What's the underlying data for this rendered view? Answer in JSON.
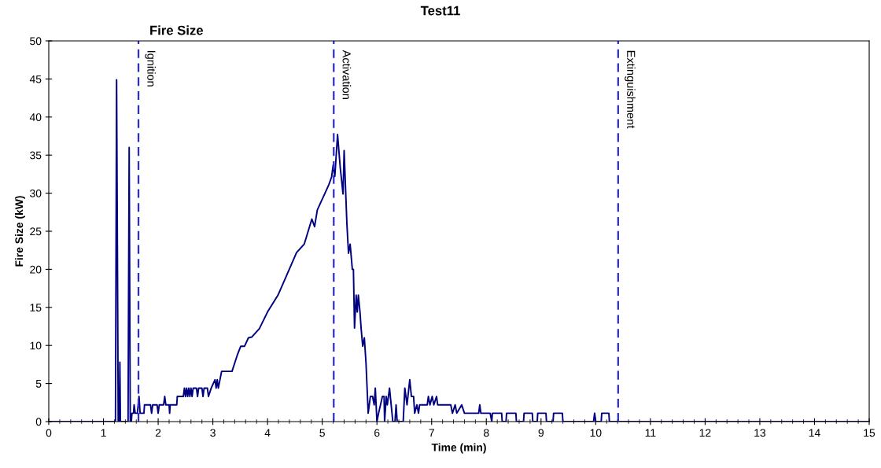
{
  "chart_data": {
    "type": "line",
    "title": "Test11",
    "subtitle": "Fire Size",
    "xlabel": "Time (min)",
    "ylabel": "Fire Size (kW)",
    "xlim": [
      0,
      15
    ],
    "xticks": [
      0,
      1,
      2,
      3,
      4,
      5,
      6,
      7,
      8,
      9,
      10,
      11,
      12,
      13,
      14,
      15
    ],
    "ylim": [
      0,
      50
    ],
    "yticks": [
      0,
      5,
      10,
      15,
      20,
      25,
      30,
      35,
      40,
      45,
      50
    ],
    "grid": false,
    "legend": false,
    "marker": "none",
    "line_style": "solid",
    "series": [
      {
        "color": "#000080",
        "x": [
          0,
          1.22,
          1.24,
          1.27,
          1.29,
          1.3,
          1.31,
          1.45,
          1.47,
          1.49,
          1.51,
          1.52,
          1.55,
          1.56,
          1.58,
          1.62,
          1.65,
          1.67,
          1.74,
          1.75,
          1.86,
          1.88,
          1.9,
          1.98,
          2.0,
          2.02,
          2.1,
          2.12,
          2.14,
          2.2,
          2.21,
          2.22,
          2.34,
          2.35,
          2.46,
          2.48,
          2.5,
          2.52,
          2.54,
          2.56,
          2.58,
          2.6,
          2.62,
          2.64,
          2.7,
          2.72,
          2.74,
          2.8,
          2.82,
          2.84,
          2.9,
          2.92,
          2.97,
          3.04,
          3.06,
          3.08,
          3.1,
          3.16,
          3.35,
          3.4,
          3.45,
          3.51,
          3.58,
          3.65,
          3.71,
          3.85,
          4.0,
          4.19,
          4.33,
          4.53,
          4.67,
          4.81,
          4.86,
          4.91,
          5.05,
          5.12,
          5.17,
          5.2,
          5.23,
          5.28,
          5.33,
          5.38,
          5.4,
          5.45,
          5.48,
          5.51,
          5.55,
          5.57,
          5.59,
          5.62,
          5.64,
          5.66,
          5.69,
          5.71,
          5.74,
          5.77,
          5.8,
          5.84,
          5.88,
          5.92,
          5.95,
          5.97,
          6.0,
          6.03,
          6.1,
          6.13,
          6.14,
          6.17,
          6.19,
          6.23,
          6.26,
          6.29,
          6.33,
          6.35,
          6.37,
          6.48,
          6.51,
          6.55,
          6.6,
          6.63,
          6.67,
          6.69,
          6.73,
          6.76,
          6.78,
          6.92,
          6.94,
          6.97,
          7.01,
          7.04,
          7.09,
          7.11,
          7.35,
          7.38,
          7.43,
          7.46,
          7.55,
          7.6,
          7.86,
          7.88,
          7.9,
          8.07,
          8.1,
          8.11,
          8.28,
          8.29,
          8.36,
          8.37,
          8.54,
          8.55,
          8.68,
          8.69,
          8.84,
          8.85,
          8.93,
          8.94,
          9.09,
          9.1,
          9.22,
          9.23,
          9.39,
          9.4,
          9.96,
          9.98,
          10.0,
          10.1,
          10.11,
          10.24,
          10.25,
          15
        ],
        "values": [
          0,
          0,
          44.9,
          0,
          0,
          7.8,
          0,
          0,
          36,
          0,
          0,
          1.1,
          1.1,
          2.2,
          1.1,
          1.1,
          3.3,
          1.1,
          1.1,
          2.2,
          2.2,
          1.1,
          2.2,
          2.2,
          1.1,
          2.2,
          2.2,
          3.3,
          2.2,
          2.2,
          1.1,
          2.2,
          2.2,
          3.3,
          3.3,
          4.4,
          3.3,
          4.4,
          3.3,
          4.4,
          3.3,
          4.4,
          3.3,
          4.4,
          4.4,
          3.3,
          4.4,
          4.4,
          3.3,
          4.4,
          4.4,
          3.3,
          4.4,
          5.5,
          4.4,
          5.5,
          4.4,
          6.6,
          6.6,
          7.7,
          8.8,
          9.9,
          9.9,
          11,
          11.1,
          12.2,
          14.4,
          16.6,
          18.9,
          22.2,
          23.3,
          26.6,
          25.6,
          27.8,
          30.0,
          31.1,
          32.1,
          33.7,
          32.2,
          37.7,
          33.3,
          29.9,
          35.6,
          26.1,
          22.1,
          23.3,
          20.0,
          20.0,
          12.3,
          16.6,
          14.4,
          16.6,
          14.4,
          12.3,
          9.9,
          11.0,
          7.7,
          1.1,
          3.3,
          3.3,
          2.2,
          4.4,
          0,
          1.1,
          3.3,
          3.3,
          0,
          3.3,
          2.2,
          4.4,
          2.2,
          0,
          0,
          2.2,
          0,
          0,
          4.4,
          2.2,
          5.5,
          3.3,
          3.3,
          1.1,
          2.2,
          1.1,
          2.2,
          2.2,
          3.3,
          2.2,
          3.3,
          2.2,
          3.3,
          2.2,
          2.2,
          1.1,
          2.2,
          1.1,
          2.2,
          1.1,
          1.1,
          2.2,
          1.1,
          1.1,
          0,
          1.1,
          1.1,
          0,
          0,
          1.1,
          1.1,
          0,
          0,
          1.1,
          1.1,
          0,
          0,
          1.1,
          1.1,
          0,
          0,
          1.1,
          1.1,
          0,
          0,
          1.1,
          0,
          0,
          1.1,
          1.1,
          0,
          0
        ]
      }
    ],
    "ref_lines": [
      {
        "axis": "x",
        "value": 1.64,
        "label": "Ignition",
        "color": "#2b2bd6",
        "line_style": "dashed"
      },
      {
        "axis": "x",
        "value": 5.21,
        "label": "Activation",
        "color": "#2b2bd6",
        "line_style": "dashed"
      },
      {
        "axis": "x",
        "value": 10.41,
        "label": "Extinguishment",
        "color": "#2b2bd6",
        "line_style": "dashed"
      }
    ]
  }
}
